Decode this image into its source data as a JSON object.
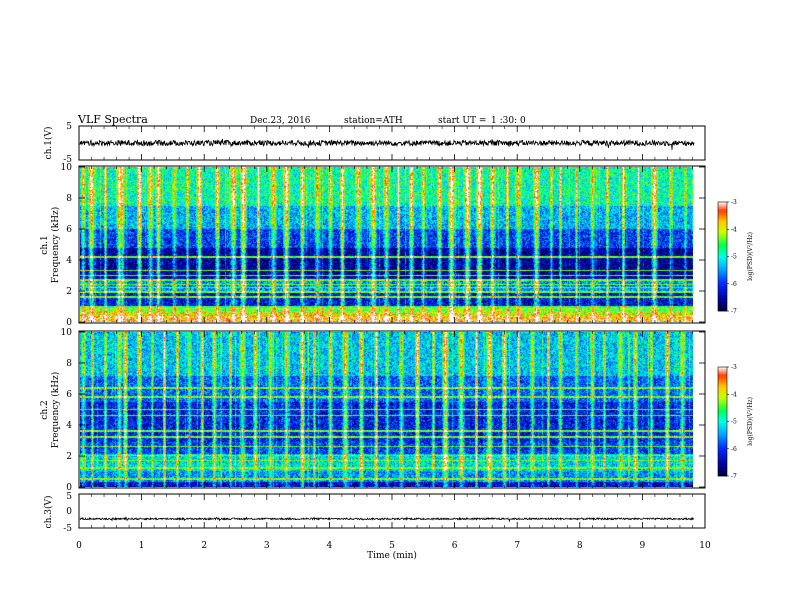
{
  "header": {
    "title": "VLF  Spectra",
    "date": "Dec.23, 2016",
    "station": "station=ATH",
    "start_label": "start  UT  =",
    "start_time": "1 :30: 0"
  },
  "chart_data": [
    {
      "type": "line",
      "panel": "ch1-waveform",
      "ylabel": "ch.1(V)",
      "ylim": [
        -5,
        5
      ],
      "yticks": [
        "5",
        "-5"
      ],
      "xlim": [
        0,
        10
      ],
      "x_data_extent": [
        0,
        9.83
      ],
      "description_level_V": 0,
      "noise_amplitude_V": 0.8
    },
    {
      "type": "heatmap",
      "panel": "ch1-spectrogram",
      "ylabel": [
        "ch.1",
        "Frequency  (kHz)"
      ],
      "ylim": [
        0,
        10
      ],
      "yticks": [
        "0",
        "2",
        "4",
        "6",
        "8",
        "10"
      ],
      "xlim": [
        0,
        10
      ],
      "x_data_extent": [
        0,
        9.83
      ],
      "colorbar": {
        "label": "log(PSD)(V²/Hz)",
        "range": [
          -7,
          -3
        ],
        "ticks": [
          "-3",
          "-4",
          "-5",
          "-6",
          "-7"
        ]
      },
      "background_bands": [
        {
          "f": [
            0.0,
            0.35
          ],
          "level": -3.6
        },
        {
          "f": [
            0.35,
            0.6
          ],
          "level": -4.0
        },
        {
          "f": [
            0.6,
            1.0
          ],
          "level": -4.6
        },
        {
          "f": [
            1.0,
            2.0
          ],
          "level": -6.3
        },
        {
          "f": [
            2.0,
            2.6
          ],
          "level": -5.6
        },
        {
          "f": [
            2.6,
            4.8
          ],
          "level": -6.6
        },
        {
          "f": [
            4.8,
            6.0
          ],
          "level": -6.0
        },
        {
          "f": [
            6.0,
            7.5
          ],
          "level": -5.4
        },
        {
          "f": [
            7.5,
            10.0
          ],
          "level": -4.9
        }
      ],
      "tones_kHz": [
        0.6,
        0.8,
        1.6,
        1.9,
        2.2,
        2.4,
        2.7,
        3.0,
        3.3,
        4.2
      ],
      "spherics_min": [
        0.05,
        0.18,
        0.4,
        0.62,
        0.68,
        0.95,
        1.12,
        1.25,
        1.5,
        1.72,
        1.9,
        2.2,
        2.45,
        2.62,
        2.85,
        3.1,
        3.3,
        3.55,
        3.8,
        4.0,
        4.2,
        4.45,
        4.7,
        4.9,
        5.1,
        5.3,
        5.5,
        5.75,
        5.95,
        6.2,
        6.4,
        6.6,
        6.85,
        7.02,
        7.3,
        7.55,
        7.7,
        7.95,
        8.2,
        8.45,
        8.7,
        8.95,
        9.2,
        9.45,
        9.7
      ]
    },
    {
      "type": "heatmap",
      "panel": "ch2-spectrogram",
      "ylabel": [
        "ch.2",
        "Frequency  (kHz)"
      ],
      "ylim": [
        0,
        10
      ],
      "yticks": [
        "0",
        "2",
        "4",
        "6",
        "8",
        "10"
      ],
      "xlim": [
        0,
        10
      ],
      "x_data_extent": [
        0,
        9.83
      ],
      "colorbar": {
        "label": "log(PSD)(V²/Hz)",
        "range": [
          -7,
          -3
        ],
        "ticks": [
          "-3",
          "-4",
          "-5",
          "-6",
          "-7"
        ]
      },
      "background_bands": [
        {
          "f": [
            0.0,
            0.3
          ],
          "level": -6.4
        },
        {
          "f": [
            0.3,
            1.0
          ],
          "level": -5.6
        },
        {
          "f": [
            1.0,
            2.1
          ],
          "level": -5.2
        },
        {
          "f": [
            2.1,
            2.9
          ],
          "level": -6.0
        },
        {
          "f": [
            2.9,
            5.5
          ],
          "level": -6.2
        },
        {
          "f": [
            5.5,
            7.2
          ],
          "level": -5.8
        },
        {
          "f": [
            7.2,
            10.0
          ],
          "level": -5.3
        }
      ],
      "tones_kHz": [
        0.5,
        1.2,
        1.7,
        2.0,
        2.6,
        3.2,
        3.6,
        4.6,
        5.0,
        5.8,
        6.4
      ],
      "spherics_min": [
        0.05,
        0.2,
        0.4,
        0.62,
        0.72,
        0.95,
        1.15,
        1.35,
        1.55,
        1.75,
        1.95,
        2.15,
        2.4,
        2.6,
        2.8,
        3.05,
        3.3,
        3.55,
        3.75,
        4.0,
        4.25,
        4.5,
        4.75,
        4.92,
        5.15,
        5.4,
        5.65,
        5.85,
        6.1,
        6.35,
        6.55,
        6.8,
        7.02,
        7.25,
        7.5,
        7.7,
        7.95,
        8.2,
        8.4,
        8.65,
        8.9,
        9.15,
        9.4,
        9.65
      ]
    },
    {
      "type": "line",
      "panel": "ch3-waveform",
      "ylabel": "ch.3(V)",
      "ylim": [
        -5,
        5
      ],
      "yticks": [
        "5",
        "0",
        "-5"
      ],
      "xlim": [
        0,
        10
      ],
      "x_data_extent": [
        0,
        9.83
      ],
      "level_V": -2.3,
      "noise_amplitude_V": 0.25,
      "xlabel": "Time  (min)",
      "xticks": [
        "0",
        "1",
        "2",
        "3",
        "4",
        "5",
        "6",
        "7",
        "8",
        "9",
        "10"
      ]
    }
  ]
}
